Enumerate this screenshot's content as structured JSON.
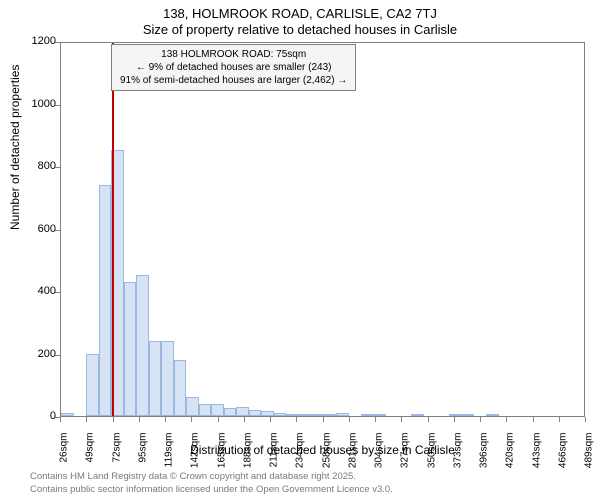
{
  "titles": {
    "main": "138, HOLMROOK ROAD, CARLISLE, CA2 7TJ",
    "sub": "Size of property relative to detached houses in Carlisle"
  },
  "axes": {
    "ylabel": "Number of detached properties",
    "xlabel": "Distribution of detached houses by size in Carlisle",
    "ylim": [
      0,
      1200
    ],
    "yticks": [
      0,
      200,
      400,
      600,
      800,
      1000,
      1200
    ],
    "xticks": [
      "26sqm",
      "49sqm",
      "72sqm",
      "95sqm",
      "119sqm",
      "142sqm",
      "165sqm",
      "188sqm",
      "211sqm",
      "234sqm",
      "258sqm",
      "281sqm",
      "304sqm",
      "327sqm",
      "350sqm",
      "373sqm",
      "396sqm",
      "420sqm",
      "443sqm",
      "466sqm",
      "489sqm"
    ]
  },
  "histogram": {
    "type": "histogram",
    "bar_fill": "#d6e3f5",
    "bar_border": "#9db8de",
    "background": "#ffffff",
    "border_color": "#808080",
    "values": [
      10,
      0,
      200,
      740,
      850,
      430,
      450,
      240,
      240,
      180,
      60,
      40,
      40,
      25,
      30,
      20,
      15,
      10,
      5,
      5,
      5,
      5,
      10,
      0,
      5,
      5,
      0,
      0,
      5,
      0,
      0,
      5,
      5,
      0,
      5,
      0,
      0,
      0,
      0,
      0,
      0,
      0
    ],
    "bin_width": 11.67
  },
  "reference_line": {
    "value": 75,
    "color": "#c00000",
    "x_position_pct": 9.8
  },
  "callout": {
    "line1": "138 HOLMROOK ROAD: 75sqm",
    "line2": "← 9% of detached houses are smaller (243)",
    "line3": "91% of semi-detached houses are larger (2,462) →"
  },
  "license": {
    "line1": "Contains HM Land Registry data © Crown copyright and database right 2025.",
    "line2": "Contains public sector information licensed under the Open Government Licence v3.0."
  }
}
